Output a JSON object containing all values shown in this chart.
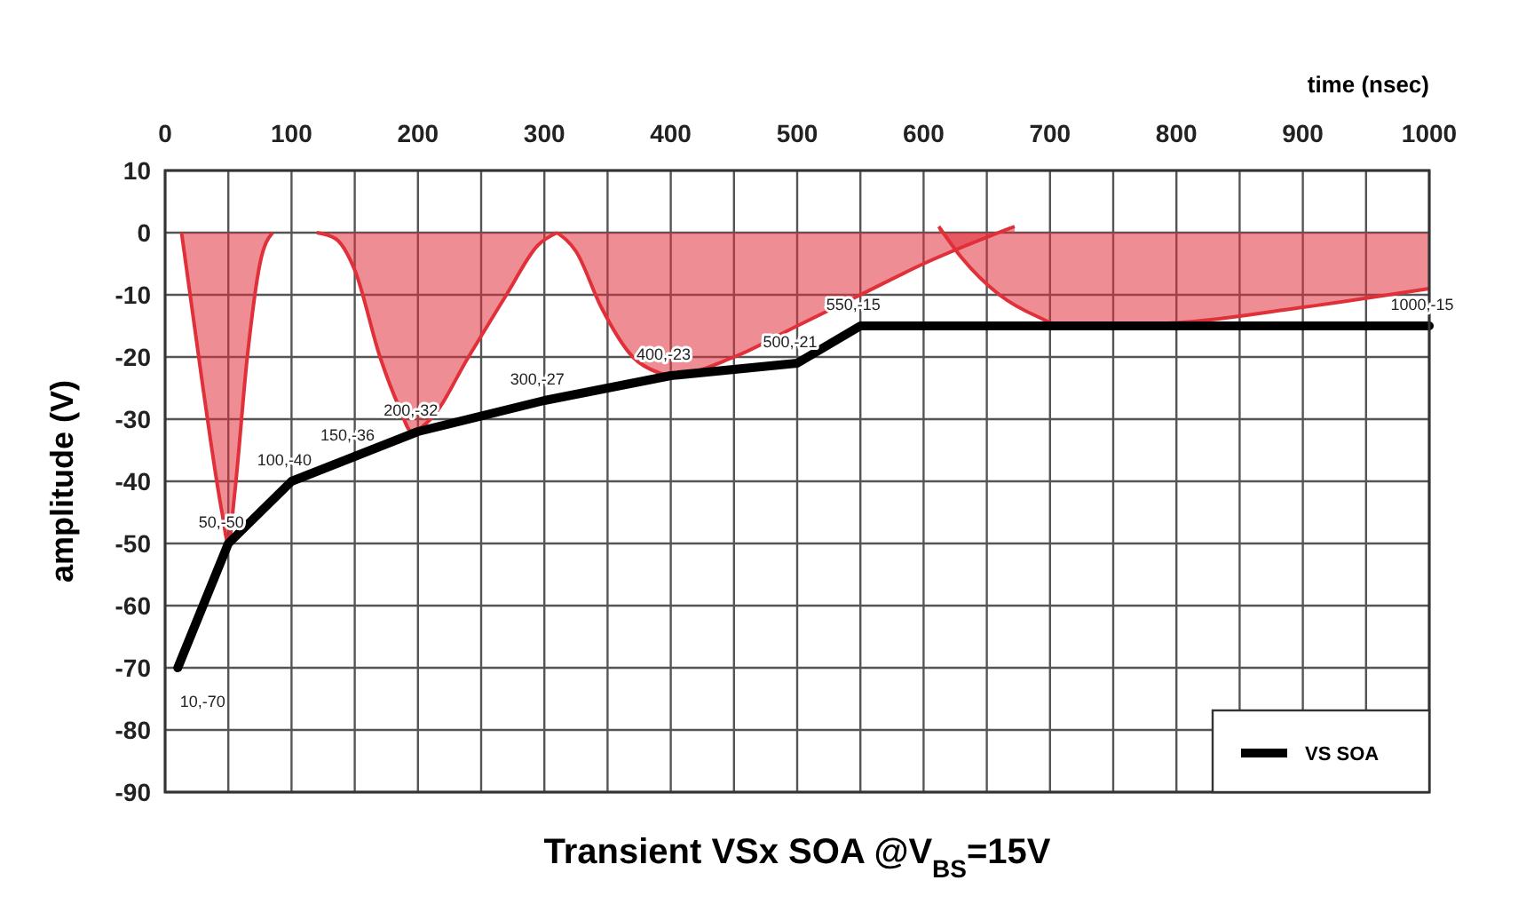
{
  "chart_data": {
    "type": "line",
    "title": "Transient VSx SOA @V$_{BS}$=15V",
    "xlabel": "time (nsec)",
    "ylabel": "amplitude (V)",
    "xlim": [
      0,
      1000
    ],
    "xticks": [
      0,
      {
        "value": 50,
        "label": null
      },
      100,
      {
        "value": 150,
        "label": null
      },
      200,
      {
        "value": 250,
        "label": null
      },
      300,
      {
        "value": 350,
        "label": null
      },
      400,
      {
        "value": 450,
        "label": null
      },
      500,
      {
        "value": 550,
        "label": null
      },
      600,
      {
        "value": 650,
        "label": null
      },
      700,
      {
        "value": 750,
        "label": null
      },
      800,
      {
        "value": 850,
        "label": null
      },
      900,
      {
        "value": 950,
        "label": null
      },
      1000
    ],
    "ylim": [
      -90,
      10
    ],
    "yticks": [
      10,
      0,
      -10,
      -20,
      -30,
      -40,
      -50,
      -60,
      -70,
      -80,
      -90
    ],
    "grid": true,
    "legend": "bottom right",
    "marker": "none",
    "line_style": "solid",
    "series": [
      {
        "type": "area",
        "color": "#e0303a",
        "x": [
          13,
          30,
          45,
          50,
          55,
          65,
          75,
          85
        ],
        "values": [
          0,
          -25,
          -45,
          -50,
          -42,
          -20,
          -5,
          0
        ]
      },
      {
        "type": "area",
        "color": "#e0303a",
        "x": [
          120,
          135,
          150,
          170,
          185,
          195,
          210,
          240,
          270,
          295,
          310
        ],
        "values": [
          0,
          -1,
          -6,
          -20,
          -28,
          -32,
          -30,
          -20,
          -10,
          -2,
          0
        ]
      },
      {
        "type": "area",
        "color": "#e0303a",
        "x": [
          310,
          325,
          345,
          370,
          390,
          400,
          450,
          500,
          550,
          600,
          672
        ],
        "values": [
          0,
          -3,
          -12,
          -20,
          -22.5,
          -23,
          -20,
          -15,
          -10,
          -5,
          1
        ]
      },
      {
        "type": "area",
        "color": "#e0303a",
        "x": [
          612,
          630,
          660,
          690,
          710,
          800,
          900,
          1000
        ],
        "values": [
          1,
          -4,
          -10,
          -13.5,
          -15,
          -14.5,
          -12,
          -9
        ]
      },
      {
        "name": "VS SOA",
        "color": "#000000",
        "x": [
          10,
          50,
          100,
          150,
          200,
          300,
          400,
          500,
          550,
          600,
          1000
        ],
        "values": [
          -70,
          -50,
          -40,
          -36,
          -32,
          -27,
          -23,
          -21,
          -15,
          -15,
          -15
        ]
      }
    ],
    "annotations": [
      {
        "text": "10,-70",
        "x": 10,
        "y": -70
      },
      {
        "text": "50,-50",
        "x": 50,
        "y": -50
      },
      {
        "text": "100,-40",
        "x": 100,
        "y": -40
      },
      {
        "text": "150,-36",
        "x": 150,
        "y": -36
      },
      {
        "text": "200,-32",
        "x": 200,
        "y": -32
      },
      {
        "text": "300,-27",
        "x": 300,
        "y": -27
      },
      {
        "text": "400,-23",
        "x": 400,
        "y": -23
      },
      {
        "text": "500,-21",
        "x": 500,
        "y": -21
      },
      {
        "text": "550,-15",
        "x": 550,
        "y": -15
      },
      {
        "text": "1000,-15",
        "x": 1000,
        "y": -15
      }
    ]
  }
}
